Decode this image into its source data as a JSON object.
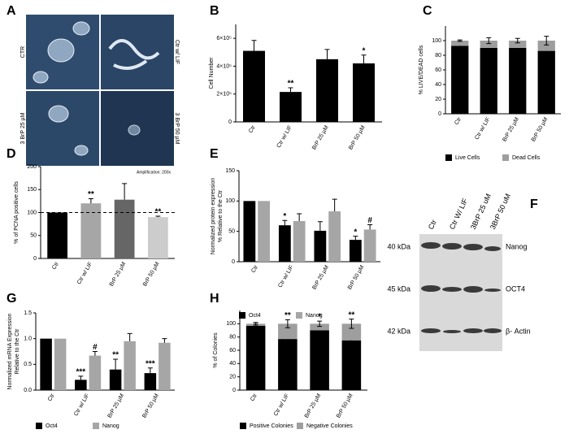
{
  "images": {
    "panel": "A",
    "tiles": [
      "CTR",
      "Ctr w/ LIF",
      "3 BrP 25 µM",
      "3 BrP 50 µM"
    ],
    "note": "Amplification: 200x"
  },
  "blot": {
    "panel": "F",
    "lanes": [
      "Ctr",
      "Ctr W/ LIF",
      "3BrP 25 uM",
      "3BrP 50 uM"
    ],
    "rows": [
      {
        "size": "40 kDa",
        "protein": "Nanog"
      },
      {
        "size": "45 kDa",
        "protein": "OCT4"
      },
      {
        "size": "42 kDa",
        "protein": "β- Actin"
      }
    ]
  },
  "chart_data": [
    {
      "panel": "B",
      "type": "bar",
      "ylabel": "Cell Number",
      "categories": [
        "Ctr",
        "Ctr w/ LIF",
        "BrP 25 µM",
        "BrP 50 µM"
      ],
      "values": [
        510000,
        215000,
        450000,
        420000
      ],
      "errors": [
        75000,
        30000,
        70000,
        60000
      ],
      "annotations": [
        null,
        "**",
        null,
        "*"
      ],
      "color": "#000000",
      "ylim": [
        0,
        700000
      ],
      "yticks": [
        0,
        {
          "value": 200000,
          "label": "2×10⁵"
        },
        {
          "value": 400000,
          "label": "4×10⁵"
        },
        {
          "value": 600000,
          "label": "6×10⁵"
        }
      ]
    },
    {
      "panel": "C",
      "type": "stacked_bar",
      "ylabel": "% LIVE/DEAD cells",
      "categories": [
        "Ctr",
        "Ctr w/ LIF",
        "BrP 25 µM",
        "BrP 50 µM"
      ],
      "series": [
        {
          "name": "Live Cells",
          "color": "#000000",
          "values": [
            93,
            90,
            90,
            86
          ],
          "errors": [
            2,
            4,
            4,
            6
          ]
        },
        {
          "name": "Dead Cells",
          "color": "#9e9e9e",
          "values": [
            7,
            10,
            10,
            14
          ],
          "errors": [
            1,
            4,
            3,
            6
          ]
        }
      ],
      "ylim": [
        0,
        120
      ],
      "yticks": [
        0,
        20,
        40,
        60,
        80,
        100
      ]
    },
    {
      "panel": "D",
      "type": "bar",
      "ylabel": "% of PCNA positive cells",
      "categories": [
        "Ctr",
        "Ctr w/ LIF",
        "BrP 25 µM",
        "BrP 50 µM"
      ],
      "values": [
        100,
        120,
        128,
        90
      ],
      "errors": [
        null,
        10,
        35,
        2
      ],
      "annotations": [
        null,
        "**",
        null,
        "**"
      ],
      "colors": [
        "#000000",
        "#a6a6a6",
        "#666666",
        "#cccccc"
      ],
      "reference_line": 100,
      "ylim": [
        0,
        200
      ],
      "yticks": [
        0,
        50,
        100,
        150,
        200
      ]
    },
    {
      "panel": "E",
      "type": "grouped_bar",
      "ylabel": [
        "Normalized protein expression",
        "% Relative to the Ctr"
      ],
      "categories": [
        "Ctr",
        "Ctr w/ LIF",
        "BrP 25 µM",
        "BrP 50 µM"
      ],
      "series": [
        {
          "name": "Oct4",
          "color": "#000000",
          "values": [
            100,
            60,
            51,
            36
          ],
          "errors": [
            null,
            8,
            15,
            6
          ],
          "annotations": [
            null,
            "*",
            null,
            "*"
          ]
        },
        {
          "name": "Nanog",
          "color": "#a6a6a6",
          "values": [
            100,
            67,
            83,
            53
          ],
          "errors": [
            null,
            12,
            20,
            8
          ],
          "annotations": [
            null,
            null,
            null,
            "#"
          ]
        }
      ],
      "ylim": [
        0,
        150
      ],
      "yticks": [
        0,
        50,
        100,
        150
      ]
    },
    {
      "panel": "G",
      "type": "grouped_bar",
      "ylabel": [
        "Normalized mRNA Expression",
        "Relative to the Ctr"
      ],
      "categories": [
        "Ctr",
        "Ctr w/ LIF",
        "BrP 25 µM",
        "BrP 50 µM"
      ],
      "series": [
        {
          "name": "Oct4",
          "color": "#000000",
          "values": [
            1,
            0.2,
            0.4,
            0.33
          ],
          "errors": [
            null,
            0.07,
            0.2,
            0.1
          ],
          "annotations": [
            null,
            "***",
            "**",
            "***"
          ]
        },
        {
          "name": "Nanog",
          "color": "#a6a6a6",
          "values": [
            1,
            0.67,
            0.95,
            0.92
          ],
          "errors": [
            null,
            0.08,
            0.15,
            0.08
          ],
          "annotations": [
            null,
            "#",
            null,
            null
          ]
        }
      ],
      "ylim": [
        0,
        1.5
      ],
      "yticks": [
        {
          "value": 0,
          "label": "0.0"
        },
        0.5,
        {
          "value": 1,
          "label": "1.0"
        },
        1.5
      ]
    },
    {
      "panel": "H",
      "type": "stacked_bar",
      "ylabel": "% of Colonies",
      "categories": [
        "Ctr",
        "Ctr w/ LIF",
        "BrP 25 µM",
        "BrP 50 µM"
      ],
      "series": [
        {
          "name": "Positive Colonies",
          "color": "#000000",
          "values": [
            97,
            77,
            90,
            75
          ],
          "errors": [
            3,
            8,
            3,
            8
          ]
        },
        {
          "name": "Negative Colonies",
          "color": "#9e9e9e",
          "values": [
            3,
            23,
            10,
            25
          ],
          "errors": [
            2,
            6,
            4,
            7
          ]
        }
      ],
      "annotations": [
        null,
        "**",
        "*",
        "**"
      ],
      "ylim": [
        0,
        120
      ],
      "yticks": [
        0,
        20,
        40,
        60,
        80,
        100
      ]
    }
  ]
}
